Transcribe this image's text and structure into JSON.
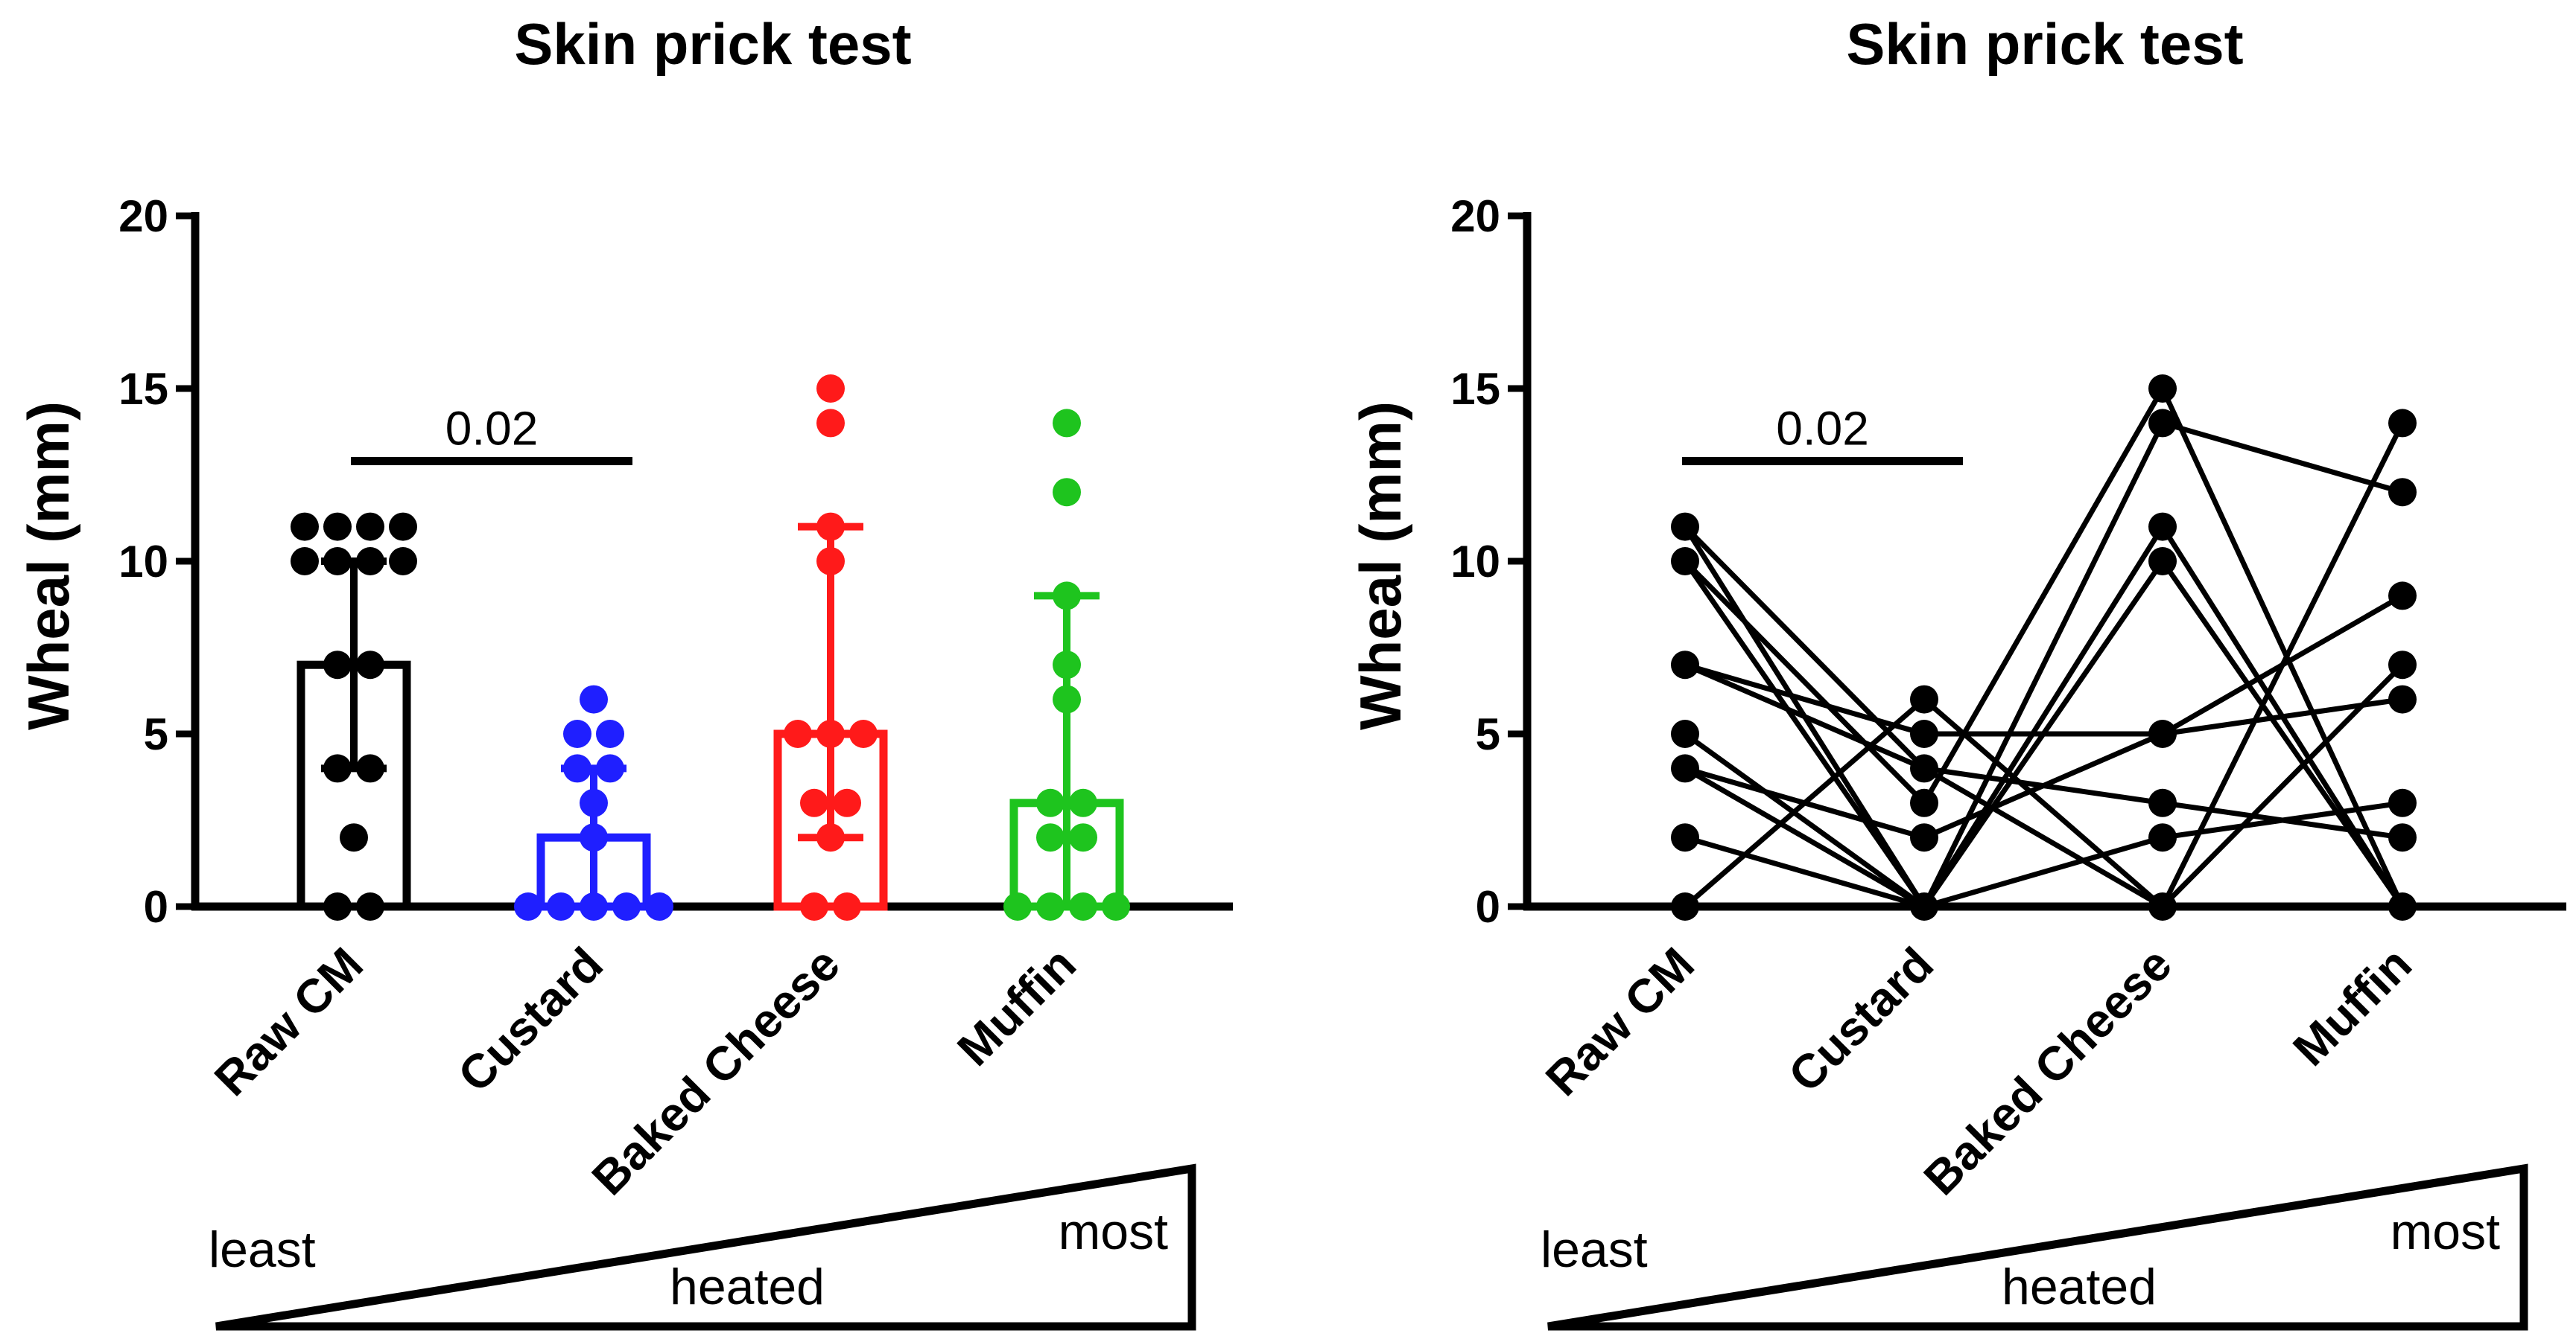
{
  "chart_data": [
    {
      "type": "bar",
      "title": "Skin prick test",
      "ylabel": "Wheal (mm)",
      "ylim": [
        0,
        20
      ],
      "yticks": [
        0,
        5,
        10,
        15,
        20
      ],
      "categories": [
        "Raw CM",
        "Custard",
        "Baked Cheese",
        "Muffin"
      ],
      "colors": [
        "#000000",
        "#1f1fff",
        "#ff1a1a",
        "#1ec41e"
      ],
      "bar_values": [
        7,
        2,
        5,
        3
      ],
      "error_upper": [
        10,
        4,
        11,
        9
      ],
      "error_lower": [
        4,
        0,
        2,
        0
      ],
      "points": [
        [
          11,
          11,
          11,
          11,
          10,
          10,
          10,
          10,
          7,
          7,
          4,
          4,
          2,
          0,
          0
        ],
        [
          6,
          5,
          5,
          4,
          4,
          3,
          2,
          0,
          0,
          0,
          0,
          0
        ],
        [
          15,
          14,
          11,
          10,
          5,
          5,
          5,
          3,
          3,
          2,
          0,
          0
        ],
        [
          14,
          12,
          9,
          7,
          6,
          3,
          3,
          2,
          2,
          0,
          0,
          0,
          0
        ]
      ],
      "annotation": {
        "text": "0.02",
        "from": "Raw CM",
        "to": "Custard",
        "y": 12.9
      },
      "heating_scale": {
        "left": "least",
        "middle": "heated",
        "right": "most"
      }
    },
    {
      "type": "line",
      "title": "Skin prick test",
      "ylabel": "Wheal (mm)",
      "ylim": [
        0,
        20
      ],
      "yticks": [
        0,
        5,
        10,
        15,
        20
      ],
      "categories": [
        "Raw CM",
        "Custard",
        "Baked Cheese",
        "Muffin"
      ],
      "color": "#000000",
      "subjects": [
        [
          11,
          4,
          3,
          2
        ],
        [
          11,
          0,
          14,
          12
        ],
        [
          10,
          0,
          11,
          0
        ],
        [
          10,
          3,
          15,
          0
        ],
        [
          7,
          5,
          5,
          6
        ],
        [
          7,
          4,
          0,
          14
        ],
        [
          4,
          2,
          5,
          9
        ],
        [
          4,
          0,
          10,
          0
        ],
        [
          0,
          6,
          0,
          7
        ],
        [
          2,
          0,
          2,
          3
        ],
        [
          5,
          0,
          0,
          0
        ]
      ],
      "annotation": {
        "text": "0.02",
        "from": "Raw CM",
        "to": "Custard",
        "y": 12.9
      },
      "heating_scale": {
        "left": "least",
        "middle": "heated",
        "right": "most"
      }
    }
  ]
}
